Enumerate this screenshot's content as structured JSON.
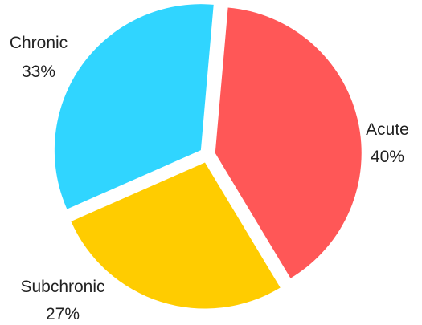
{
  "chart_data": {
    "type": "pie",
    "title": "",
    "slices": [
      {
        "label": "Acute",
        "value": 40,
        "value_label": "40%",
        "color": "#ff5757"
      },
      {
        "label": "Subchronic",
        "value": 27,
        "value_label": "27%",
        "color": "#ffcc00"
      },
      {
        "label": "Chronic",
        "value": 33,
        "value_label": "33%",
        "color": "#30d5ff"
      }
    ],
    "exploded": true,
    "legend": "none",
    "start_angle_deg": 5,
    "direction": "clockwise"
  }
}
